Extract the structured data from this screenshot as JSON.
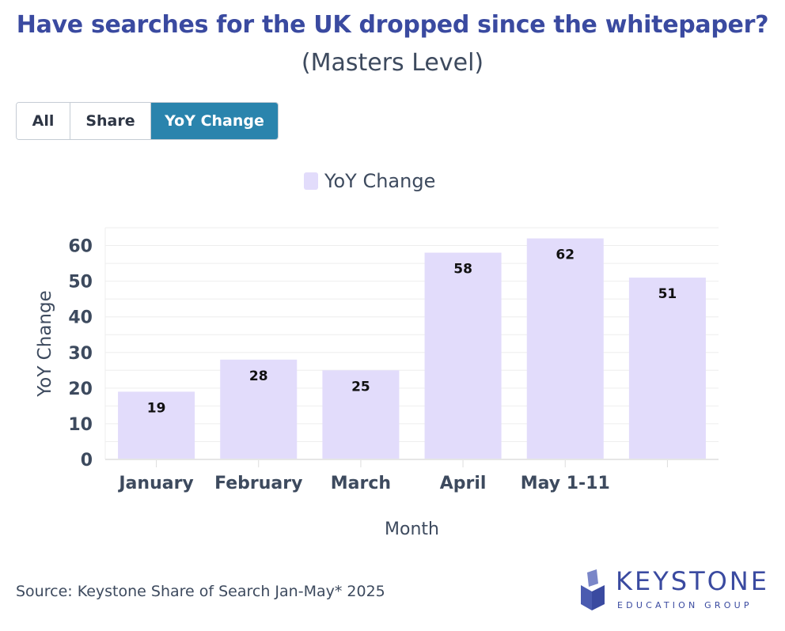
{
  "title": "Have searches for the UK dropped since the whitepaper?",
  "subtitle": "(Masters Level)",
  "toggle": {
    "options": [
      "All",
      "Share",
      "YoY Change"
    ],
    "active": "YoY Change"
  },
  "source": "Source: Keystone Share of Search Jan-May* 2025",
  "logo": {
    "name": "KEYSTONE",
    "tagline": "EDUCATION GROUP"
  },
  "colors": {
    "bar": "#e2dcfb",
    "title": "#3a4aa0",
    "active_button": "#2a84ad"
  },
  "chart_data": {
    "type": "bar",
    "categories": [
      "January",
      "February",
      "March",
      "April",
      "May 1-11",
      ""
    ],
    "series": [
      {
        "name": "YoY Change",
        "values": [
          19,
          28,
          25,
          58,
          62,
          51
        ]
      }
    ],
    "xlabel": "Month",
    "ylabel": "YoY Change",
    "ylim": [
      0,
      65
    ],
    "yticks": [
      0,
      10,
      20,
      30,
      40,
      50,
      60
    ],
    "grid": true,
    "data_labels": true,
    "legend_position": "top-center"
  }
}
